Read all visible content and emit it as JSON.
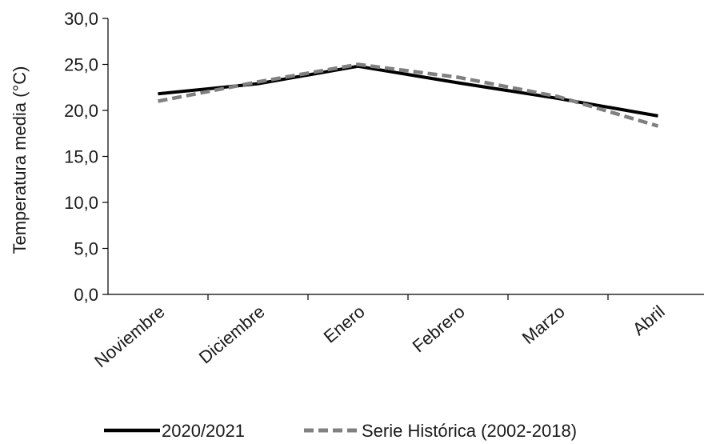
{
  "chart_data": {
    "type": "line",
    "title": "",
    "xlabel": "",
    "ylabel": "Temperatura media (°C)",
    "categories": [
      "Noviembre",
      "Diciembre",
      "Enero",
      "Febrero",
      "Marzo",
      "Abril"
    ],
    "ylim": [
      0,
      30
    ],
    "yticks": [
      "0,0",
      "5,0",
      "10,0",
      "15,0",
      "20,0",
      "25,0",
      "30,0"
    ],
    "grid": false,
    "legend_position": "bottom",
    "series": [
      {
        "name": "2020/2021",
        "values": [
          21.8,
          22.9,
          24.8,
          23.0,
          21.3,
          19.4
        ],
        "color": "#000000",
        "style": "solid"
      },
      {
        "name": "Serie Histórica (2002-2018)",
        "values": [
          21.0,
          23.1,
          25.0,
          23.6,
          21.5,
          18.3
        ],
        "color": "#808080",
        "style": "dashed"
      }
    ]
  }
}
